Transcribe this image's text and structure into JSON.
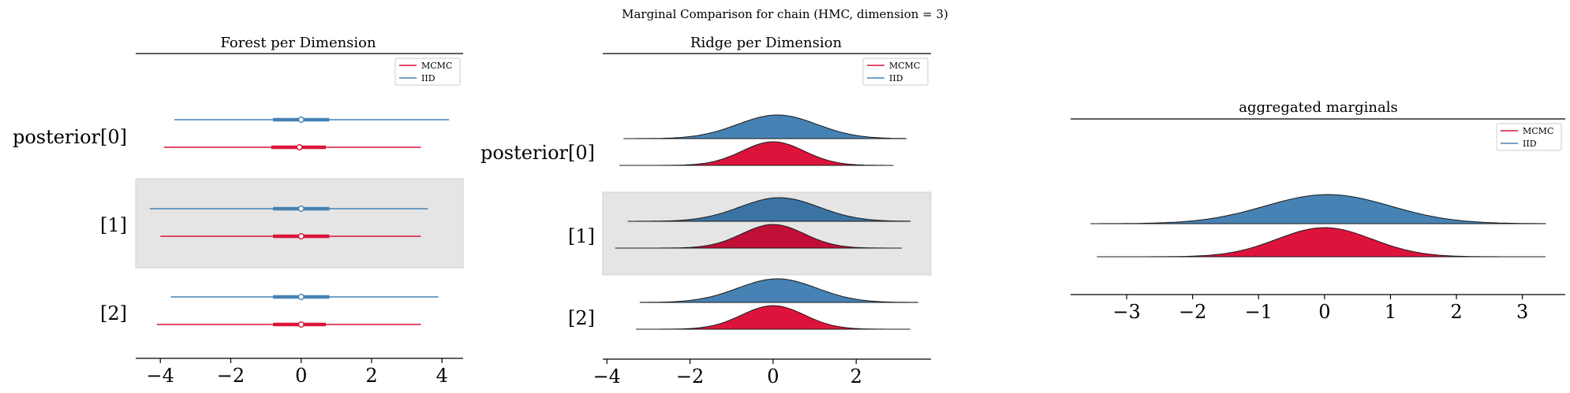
{
  "suptitle": "Marginal Comparison for chain (HMC, dimension = 3)",
  "colors": {
    "mcmc": "#dc143c",
    "iid": "#4682b4",
    "mcmc_dark": "#c10f37",
    "iid_dark": "#3b73a3",
    "band": "#e5e5e5",
    "outline": "#1a1a1a"
  },
  "legend_entries": [
    {
      "label": "MCMC",
      "color": "#dc143c"
    },
    {
      "label": "IID",
      "color": "#4682b4"
    }
  ],
  "chart_data": [
    {
      "type": "forest",
      "title": "Forest per Dimension",
      "xlim": [
        -4.7,
        4.6
      ],
      "xticks": [
        -4,
        -2,
        0,
        2,
        4
      ],
      "xtick_labels": [
        "−4",
        "−2",
        "0",
        "2",
        "4"
      ],
      "rows": [
        "posterior[0]",
        "[1]",
        "[2]"
      ],
      "shaded_row": 1,
      "legend": "top-right",
      "series": [
        {
          "name": "IID",
          "rows": [
            {
              "min": -3.6,
              "q25": -0.8,
              "median": 0.0,
              "q75": 0.8,
              "max": 4.2
            },
            {
              "min": -4.3,
              "q25": -0.8,
              "median": 0.0,
              "q75": 0.8,
              "max": 3.6
            },
            {
              "min": -3.7,
              "q25": -0.8,
              "median": 0.0,
              "q75": 0.8,
              "max": 3.9
            }
          ]
        },
        {
          "name": "MCMC",
          "rows": [
            {
              "min": -3.9,
              "q25": -0.85,
              "median": -0.05,
              "q75": 0.7,
              "max": 3.4
            },
            {
              "min": -4.0,
              "q25": -0.8,
              "median": 0.0,
              "q75": 0.8,
              "max": 3.4
            },
            {
              "min": -4.1,
              "q25": -0.8,
              "median": 0.0,
              "q75": 0.7,
              "max": 3.4
            }
          ]
        }
      ]
    },
    {
      "type": "ridge",
      "title": "Ridge per Dimension",
      "xlim": [
        -4.1,
        3.8
      ],
      "xticks": [
        -4,
        -2,
        0,
        2
      ],
      "xtick_labels": [
        "−4",
        "−2",
        "0",
        "2"
      ],
      "rows": [
        "posterior[0]",
        "[1]",
        "[2]"
      ],
      "shaded_row": 1,
      "legend": "top-right",
      "series": [
        {
          "name": "IID",
          "rows": [
            {
              "range": [
                -3.6,
                3.2
              ],
              "mean": 0.1,
              "sd": 0.95
            },
            {
              "range": [
                -3.5,
                3.3
              ],
              "mean": 0.15,
              "sd": 0.95
            },
            {
              "range": [
                -3.2,
                3.5
              ],
              "mean": 0.1,
              "sd": 0.95
            }
          ]
        },
        {
          "name": "MCMC",
          "rows": [
            {
              "range": [
                -3.7,
                2.9
              ],
              "mean": 0.0,
              "sd": 0.75
            },
            {
              "range": [
                -3.8,
                3.1
              ],
              "mean": 0.0,
              "sd": 0.75
            },
            {
              "range": [
                -3.3,
                3.3
              ],
              "mean": 0.0,
              "sd": 0.75
            }
          ]
        }
      ]
    },
    {
      "type": "ridge",
      "title": "aggregated marginals",
      "xlim": [
        -3.85,
        3.65
      ],
      "xticks": [
        -3,
        -2,
        -1,
        0,
        1,
        2,
        3
      ],
      "xtick_labels": [
        "−3",
        "−2",
        "−1",
        "0",
        "1",
        "2",
        "3"
      ],
      "legend": "top-right",
      "series": [
        {
          "name": "IID",
          "range": [
            -3.55,
            3.35
          ],
          "mean": 0.05,
          "sd": 0.95
        },
        {
          "name": "MCMC",
          "range": [
            -3.45,
            3.35
          ],
          "mean": 0.0,
          "sd": 0.72
        }
      ]
    }
  ]
}
